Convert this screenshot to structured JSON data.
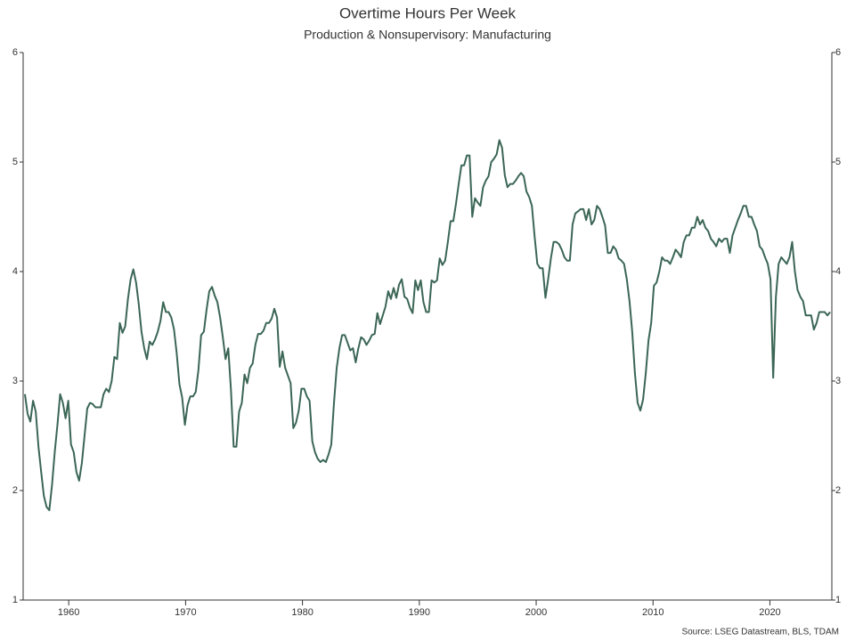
{
  "chart_data": {
    "type": "line",
    "title": "Overtime Hours Per Week",
    "subtitle": "Production & Nonsupervisory: Manufacturing",
    "source": "Source: LSEG Datastream, BLS, TDAM",
    "xlim": [
      1956.1,
      2025.3
    ],
    "xticks": [
      1960,
      1970,
      1980,
      1990,
      2000,
      2010,
      2020
    ],
    "ylim": [
      1,
      6
    ],
    "yticks": [
      1,
      2,
      3,
      4,
      5,
      6
    ],
    "grid": false,
    "x": [
      1956.25,
      1956.482,
      1956.714,
      1956.946,
      1957.178,
      1957.41,
      1957.642,
      1957.874,
      1958.106,
      1958.338,
      1958.57,
      1958.802,
      1959.034,
      1959.266,
      1959.498,
      1959.73,
      1959.962,
      1960.194,
      1960.426,
      1960.658,
      1960.89,
      1961.122,
      1961.354,
      1961.586,
      1961.818,
      1962.05,
      1962.282,
      1962.514,
      1962.746,
      1962.978,
      1963.21,
      1963.442,
      1963.674,
      1963.906,
      1964.138,
      1964.37,
      1964.602,
      1964.834,
      1965.066,
      1965.298,
      1965.53,
      1965.762,
      1965.994,
      1966.226,
      1966.458,
      1966.69,
      1966.922,
      1967.154,
      1967.386,
      1967.618,
      1967.85,
      1968.082,
      1968.314,
      1968.546,
      1968.778,
      1969.01,
      1969.242,
      1969.474,
      1969.706,
      1969.938,
      1970.17,
      1970.402,
      1970.634,
      1970.866,
      1971.098,
      1971.33,
      1971.562,
      1971.794,
      1972.026,
      1972.258,
      1972.49,
      1972.722,
      1972.954,
      1973.186,
      1973.418,
      1973.65,
      1973.882,
      1974.114,
      1974.346,
      1974.578,
      1974.81,
      1975.042,
      1975.274,
      1975.506,
      1975.738,
      1975.97,
      1976.202,
      1976.434,
      1976.666,
      1976.898,
      1977.13,
      1977.362,
      1977.594,
      1977.826,
      1978.058,
      1978.29,
      1978.522,
      1978.754,
      1978.986,
      1979.218,
      1979.45,
      1979.682,
      1979.914,
      1980.146,
      1980.378,
      1980.61,
      1980.842,
      1981.074,
      1981.306,
      1981.538,
      1981.77,
      1982.002,
      1982.234,
      1982.466,
      1982.698,
      1982.93,
      1983.162,
      1983.394,
      1983.626,
      1983.858,
      1984.09,
      1984.322,
      1984.554,
      1984.786,
      1985.018,
      1985.25,
      1985.482,
      1985.714,
      1985.946,
      1986.178,
      1986.41,
      1986.642,
      1986.874,
      1987.106,
      1987.338,
      1987.57,
      1987.802,
      1988.034,
      1988.266,
      1988.498,
      1988.73,
      1988.962,
      1989.194,
      1989.426,
      1989.658,
      1989.89,
      1990.122,
      1990.354,
      1990.586,
      1990.818,
      1991.05,
      1991.282,
      1991.514,
      1991.746,
      1991.978,
      1992.21,
      1992.442,
      1992.674,
      1992.906,
      1993.138,
      1993.37,
      1993.602,
      1993.834,
      1994.066,
      1994.298,
      1994.53,
      1994.762,
      1994.994,
      1995.226,
      1995.458,
      1995.69,
      1995.922,
      1996.154,
      1996.386,
      1996.618,
      1996.85,
      1997.082,
      1997.314,
      1997.546,
      1997.778,
      1998.01,
      1998.242,
      1998.474,
      1998.706,
      1998.938,
      1999.17,
      1999.402,
      1999.634,
      1999.866,
      2000.098,
      2000.33,
      2000.562,
      2000.794,
      2001.026,
      2001.258,
      2001.49,
      2001.722,
      2001.954,
      2002.186,
      2002.418,
      2002.65,
      2002.882,
      2003.114,
      2003.346,
      2003.578,
      2003.81,
      2004.042,
      2004.274,
      2004.506,
      2004.738,
      2004.97,
      2005.202,
      2005.434,
      2005.666,
      2005.898,
      2006.13,
      2006.362,
      2006.594,
      2006.826,
      2007.058,
      2007.29,
      2007.522,
      2007.754,
      2007.986,
      2008.218,
      2008.45,
      2008.682,
      2008.914,
      2009.146,
      2009.378,
      2009.61,
      2009.842,
      2010.074,
      2010.306,
      2010.538,
      2010.77,
      2011.002,
      2011.234,
      2011.466,
      2011.698,
      2011.93,
      2012.162,
      2012.394,
      2012.626,
      2012.858,
      2013.09,
      2013.322,
      2013.554,
      2013.786,
      2014.018,
      2014.25,
      2014.482,
      2014.714,
      2014.946,
      2015.178,
      2015.41,
      2015.642,
      2015.874,
      2016.106,
      2016.338,
      2016.57,
      2016.802,
      2017.034,
      2017.266,
      2017.498,
      2017.73,
      2017.962,
      2018.194,
      2018.426,
      2018.658,
      2018.89,
      2019.122,
      2019.354,
      2019.586,
      2019.818,
      2020.05,
      2020.282,
      2020.514,
      2020.746,
      2020.978,
      2021.21,
      2021.442,
      2021.674,
      2021.906,
      2022.138,
      2022.37,
      2022.602,
      2022.834,
      2023.066,
      2023.298,
      2023.53,
      2023.762,
      2023.994,
      2024.226,
      2024.458,
      2024.69,
      2024.922,
      2025.154
    ],
    "color": "#3b6656",
    "values": [
      2.88,
      2.7,
      2.63,
      2.82,
      2.72,
      2.4,
      2.17,
      1.95,
      1.85,
      1.82,
      2.05,
      2.35,
      2.6,
      2.88,
      2.8,
      2.66,
      2.82,
      2.42,
      2.35,
      2.17,
      2.09,
      2.25,
      2.5,
      2.75,
      2.8,
      2.79,
      2.76,
      2.76,
      2.76,
      2.88,
      2.93,
      2.9,
      3.0,
      3.22,
      3.2,
      3.53,
      3.44,
      3.5,
      3.75,
      3.93,
      4.02,
      3.9,
      3.7,
      3.45,
      3.3,
      3.2,
      3.36,
      3.33,
      3.38,
      3.45,
      3.55,
      3.72,
      3.63,
      3.63,
      3.58,
      3.47,
      3.25,
      2.97,
      2.85,
      2.6,
      2.78,
      2.86,
      2.86,
      2.9,
      3.1,
      3.42,
      3.45,
      3.65,
      3.82,
      3.86,
      3.78,
      3.72,
      3.58,
      3.4,
      3.2,
      3.3,
      2.92,
      2.4,
      2.4,
      2.72,
      2.8,
      3.06,
      2.98,
      3.12,
      3.16,
      3.33,
      3.43,
      3.43,
      3.46,
      3.53,
      3.53,
      3.57,
      3.66,
      3.58,
      3.13,
      3.27,
      3.12,
      3.05,
      2.98,
      2.57,
      2.62,
      2.73,
      2.93,
      2.93,
      2.86,
      2.82,
      2.45,
      2.35,
      2.29,
      2.26,
      2.28,
      2.26,
      2.33,
      2.42,
      2.8,
      3.12,
      3.3,
      3.42,
      3.42,
      3.35,
      3.28,
      3.3,
      3.17,
      3.3,
      3.4,
      3.38,
      3.33,
      3.37,
      3.42,
      3.43,
      3.62,
      3.52,
      3.6,
      3.68,
      3.82,
      3.75,
      3.85,
      3.76,
      3.88,
      3.93,
      3.77,
      3.75,
      3.67,
      3.62,
      3.92,
      3.83,
      3.92,
      3.72,
      3.63,
      3.63,
      3.92,
      3.9,
      3.92,
      4.12,
      4.06,
      4.1,
      4.27,
      4.46,
      4.46,
      4.62,
      4.8,
      4.97,
      4.97,
      5.06,
      5.06,
      4.5,
      4.67,
      4.63,
      4.6,
      4.77,
      4.83,
      4.87,
      5.0,
      5.03,
      5.07,
      5.2,
      5.13,
      4.88,
      4.77,
      4.8,
      4.8,
      4.83,
      4.87,
      4.9,
      4.87,
      4.73,
      4.68,
      4.6,
      4.32,
      4.07,
      4.03,
      4.03,
      3.76,
      3.93,
      4.12,
      4.27,
      4.27,
      4.25,
      4.2,
      4.13,
      4.1,
      4.1,
      4.43,
      4.53,
      4.55,
      4.57,
      4.57,
      4.47,
      4.57,
      4.43,
      4.47,
      4.6,
      4.57,
      4.5,
      4.42,
      4.17,
      4.17,
      4.23,
      4.2,
      4.12,
      4.1,
      4.07,
      3.93,
      3.73,
      3.45,
      3.07,
      2.8,
      2.73,
      2.83,
      3.07,
      3.37,
      3.53,
      3.87,
      3.9,
      4.0,
      4.13,
      4.1,
      4.1,
      4.07,
      4.13,
      4.2,
      4.17,
      4.13,
      4.27,
      4.33,
      4.33,
      4.4,
      4.4,
      4.5,
      4.43,
      4.47,
      4.4,
      4.37,
      4.3,
      4.27,
      4.23,
      4.3,
      4.27,
      4.3,
      4.3,
      4.17,
      4.33,
      4.4,
      4.47,
      4.53,
      4.6,
      4.6,
      4.5,
      4.5,
      4.43,
      4.37,
      4.23,
      4.2,
      4.13,
      4.07,
      3.93,
      3.03,
      3.77,
      4.07,
      4.13,
      4.1,
      4.07,
      4.13,
      4.27,
      4.0,
      3.83,
      3.77,
      3.73,
      3.6,
      3.6,
      3.6,
      3.47,
      3.53,
      3.63,
      3.63,
      3.63,
      3.6,
      3.63
    ]
  }
}
